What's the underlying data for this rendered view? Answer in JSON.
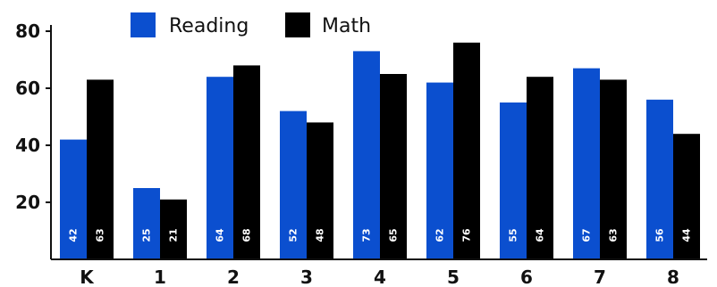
{
  "chart_data": {
    "type": "bar",
    "title": "",
    "xlabel": "",
    "ylabel": "",
    "categories": [
      "K",
      "1",
      "2",
      "3",
      "4",
      "5",
      "6",
      "7",
      "8"
    ],
    "series": [
      {
        "name": "Reading",
        "color": "#0b4fcf",
        "values": [
          42,
          25,
          64,
          52,
          73,
          62,
          55,
          67,
          56
        ]
      },
      {
        "name": "Math",
        "color": "#000000",
        "values": [
          63,
          21,
          68,
          48,
          65,
          76,
          64,
          63,
          44
        ]
      }
    ],
    "y_ticks": [
      "20",
      "40",
      "60",
      "80"
    ],
    "ylim": [
      0,
      80
    ],
    "grid": false,
    "legend_position": "top",
    "data_labels": true
  }
}
